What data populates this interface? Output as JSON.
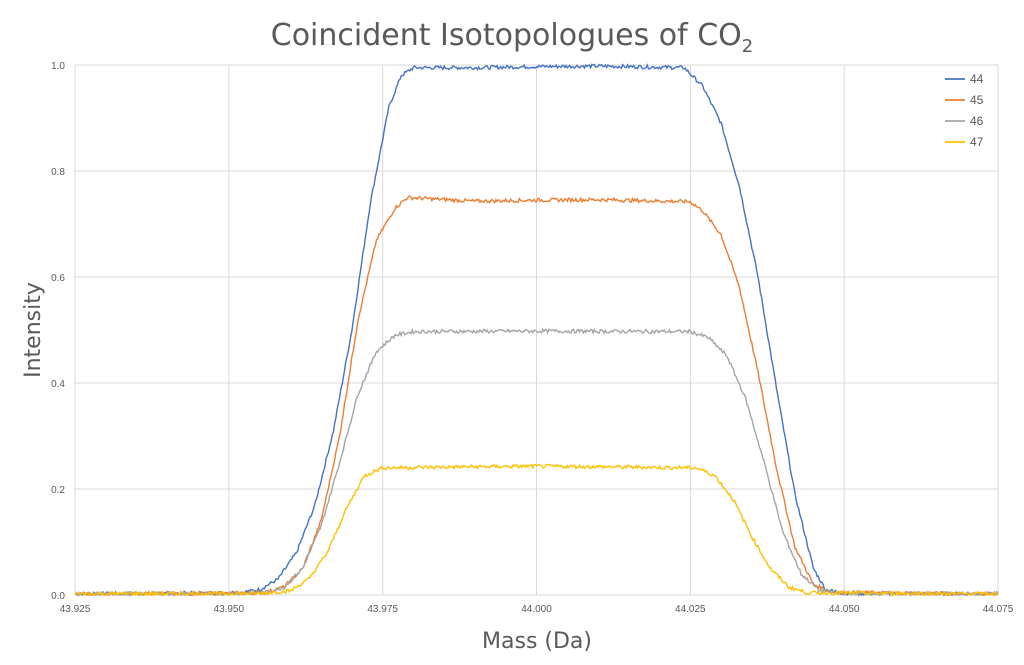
{
  "chart_data": {
    "type": "line",
    "title": "Coincident Isotopologues of CO",
    "title_subscript": "2",
    "xlabel": "Mass (Da)",
    "ylabel": "Intensity",
    "xlim": [
      43.925,
      44.075
    ],
    "ylim": [
      0,
      1.0
    ],
    "x_ticks": [
      "43.925",
      "43.950",
      "43.975",
      "44.000",
      "44.025",
      "44.050",
      "44.075"
    ],
    "y_ticks": [
      "0.0",
      "0.2",
      "0.4",
      "0.6",
      "0.8",
      "1.0"
    ],
    "grid": true,
    "legend_position": "top-right",
    "series": [
      {
        "name": "44",
        "color": "#4472C4",
        "points": [
          [
            43.925,
            0.002
          ],
          [
            43.945,
            0.003
          ],
          [
            43.952,
            0.005
          ],
          [
            43.955,
            0.01
          ],
          [
            43.958,
            0.03
          ],
          [
            43.961,
            0.08
          ],
          [
            43.964,
            0.17
          ],
          [
            43.967,
            0.31
          ],
          [
            43.97,
            0.5
          ],
          [
            43.973,
            0.74
          ],
          [
            43.976,
            0.92
          ],
          [
            43.978,
            0.98
          ],
          [
            43.98,
            0.995
          ],
          [
            43.99,
            0.995
          ],
          [
            44.0,
            0.997
          ],
          [
            44.01,
            0.998
          ],
          [
            44.024,
            0.995
          ],
          [
            44.027,
            0.96
          ],
          [
            44.03,
            0.89
          ],
          [
            44.033,
            0.77
          ],
          [
            44.036,
            0.6
          ],
          [
            44.039,
            0.39
          ],
          [
            44.042,
            0.19
          ],
          [
            44.045,
            0.05
          ],
          [
            44.047,
            0.01
          ],
          [
            44.05,
            0.003
          ],
          [
            44.075,
            0.002
          ]
        ]
      },
      {
        "name": "45",
        "color": "#ED7D31",
        "points": [
          [
            43.925,
            0.002
          ],
          [
            43.95,
            0.003
          ],
          [
            43.956,
            0.005
          ],
          [
            43.959,
            0.015
          ],
          [
            43.962,
            0.05
          ],
          [
            43.965,
            0.14
          ],
          [
            43.968,
            0.3
          ],
          [
            43.971,
            0.52
          ],
          [
            43.974,
            0.67
          ],
          [
            43.977,
            0.73
          ],
          [
            43.979,
            0.75
          ],
          [
            43.99,
            0.743
          ],
          [
            44.0,
            0.745
          ],
          [
            44.01,
            0.746
          ],
          [
            44.025,
            0.742
          ],
          [
            44.027,
            0.725
          ],
          [
            44.03,
            0.68
          ],
          [
            44.033,
            0.58
          ],
          [
            44.036,
            0.42
          ],
          [
            44.039,
            0.24
          ],
          [
            44.042,
            0.09
          ],
          [
            44.045,
            0.02
          ],
          [
            44.048,
            0.005
          ],
          [
            44.075,
            0.002
          ]
        ]
      },
      {
        "name": "46",
        "color": "#A5A5A5",
        "points": [
          [
            43.925,
            0.002
          ],
          [
            43.95,
            0.003
          ],
          [
            43.956,
            0.005
          ],
          [
            43.959,
            0.015
          ],
          [
            43.962,
            0.05
          ],
          [
            43.965,
            0.13
          ],
          [
            43.968,
            0.25
          ],
          [
            43.971,
            0.38
          ],
          [
            43.974,
            0.46
          ],
          [
            43.977,
            0.49
          ],
          [
            43.98,
            0.497
          ],
          [
            44.0,
            0.498
          ],
          [
            44.025,
            0.497
          ],
          [
            44.028,
            0.485
          ],
          [
            44.031,
            0.45
          ],
          [
            44.034,
            0.37
          ],
          [
            44.037,
            0.25
          ],
          [
            44.04,
            0.12
          ],
          [
            44.043,
            0.04
          ],
          [
            44.046,
            0.008
          ],
          [
            44.05,
            0.003
          ],
          [
            44.075,
            0.002
          ]
        ]
      },
      {
        "name": "47",
        "color": "#FFC000",
        "points": [
          [
            43.925,
            0.002
          ],
          [
            43.955,
            0.003
          ],
          [
            43.96,
            0.008
          ],
          [
            43.963,
            0.03
          ],
          [
            43.966,
            0.08
          ],
          [
            43.969,
            0.16
          ],
          [
            43.972,
            0.225
          ],
          [
            43.975,
            0.24
          ],
          [
            43.99,
            0.242
          ],
          [
            44.0,
            0.243
          ],
          [
            44.01,
            0.242
          ],
          [
            44.026,
            0.24
          ],
          [
            44.029,
            0.225
          ],
          [
            44.032,
            0.18
          ],
          [
            44.035,
            0.11
          ],
          [
            44.038,
            0.05
          ],
          [
            44.041,
            0.015
          ],
          [
            44.044,
            0.004
          ],
          [
            44.075,
            0.002
          ]
        ]
      }
    ]
  }
}
